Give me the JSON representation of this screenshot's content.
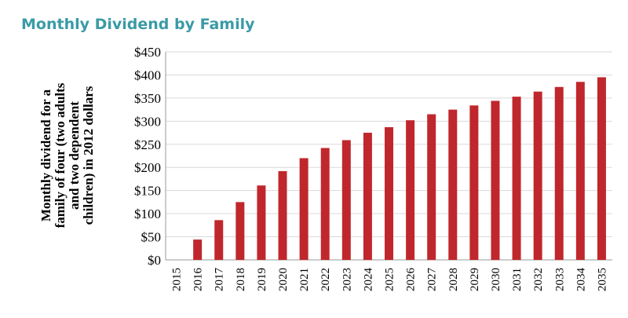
{
  "chart_data": {
    "type": "bar",
    "title": "Monthly Dividend by Family",
    "ylabel": [
      "Monthly dividend for a",
      "family of four (two adults",
      "and two dependent",
      "children) in 2012 dollars"
    ],
    "categories": [
      "2015",
      "2016",
      "2017",
      "2018",
      "2019",
      "2020",
      "2021",
      "2022",
      "2023",
      "2024",
      "2025",
      "2026",
      "2027",
      "2028",
      "2029",
      "2030",
      "2031",
      "2032",
      "2033",
      "2034",
      "2035"
    ],
    "values": [
      0,
      44,
      86,
      125,
      161,
      192,
      220,
      242,
      259,
      275,
      287,
      302,
      315,
      325,
      334,
      344,
      353,
      364,
      374,
      385,
      395
    ],
    "color": "#c0272d",
    "ylim": [
      0,
      450
    ],
    "yticks": [
      {
        "value": 0,
        "label": "$0"
      },
      {
        "value": 50,
        "label": "$50"
      },
      {
        "value": 100,
        "label": "$100"
      },
      {
        "value": 150,
        "label": "$150"
      },
      {
        "value": 200,
        "label": "$200"
      },
      {
        "value": 250,
        "label": "$250"
      },
      {
        "value": 300,
        "label": "$300"
      },
      {
        "value": 350,
        "label": "$350"
      },
      {
        "value": 400,
        "label": "$400"
      },
      {
        "value": 450,
        "label": "$450"
      }
    ],
    "grid": true
  }
}
